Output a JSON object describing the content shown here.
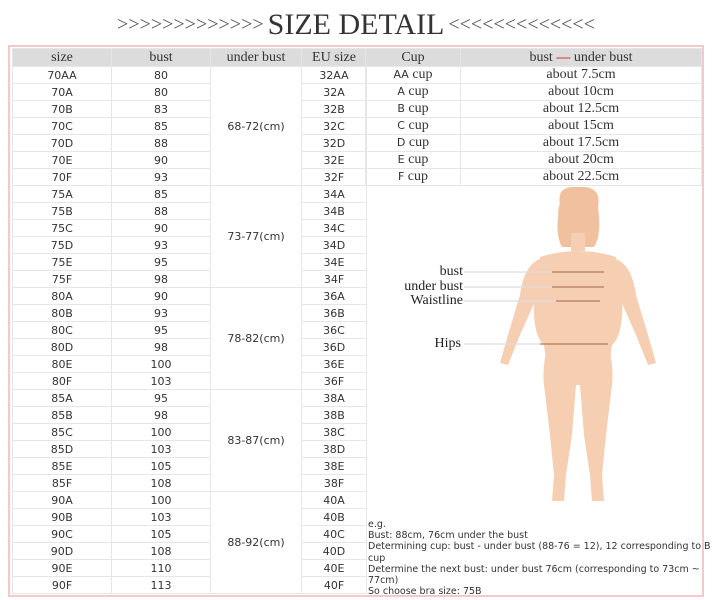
{
  "title": {
    "left_arrows": ">>>>>>>>>>>>>",
    "text": "SIZE DETAIL",
    "right_arrows": "<<<<<<<<<<<<<"
  },
  "size_table": {
    "headers": [
      "size",
      "bust",
      "under bust",
      "EU size"
    ],
    "groups": [
      {
        "under_bust": "68-72(cm)",
        "rows": [
          [
            "70AA",
            "80",
            "32AA"
          ],
          [
            "70A",
            "80",
            "32A"
          ],
          [
            "70B",
            "83",
            "32B"
          ],
          [
            "70C",
            "85",
            "32C"
          ],
          [
            "70D",
            "88",
            "32D"
          ],
          [
            "70E",
            "90",
            "32E"
          ],
          [
            "70F",
            "93",
            "32F"
          ]
        ]
      },
      {
        "under_bust": "73-77(cm)",
        "rows": [
          [
            "75A",
            "85",
            "34A"
          ],
          [
            "75B",
            "88",
            "34B"
          ],
          [
            "75C",
            "90",
            "34C"
          ],
          [
            "75D",
            "93",
            "34D"
          ],
          [
            "75E",
            "95",
            "34E"
          ],
          [
            "75F",
            "98",
            "34F"
          ]
        ]
      },
      {
        "under_bust": "78-82(cm)",
        "rows": [
          [
            "80A",
            "90",
            "36A"
          ],
          [
            "80B",
            "93",
            "36B"
          ],
          [
            "80C",
            "95",
            "36C"
          ],
          [
            "80D",
            "98",
            "36D"
          ],
          [
            "80E",
            "100",
            "36E"
          ],
          [
            "80F",
            "103",
            "36F"
          ]
        ]
      },
      {
        "under_bust": "83-87(cm)",
        "rows": [
          [
            "85A",
            "95",
            "38A"
          ],
          [
            "85B",
            "98",
            "38B"
          ],
          [
            "85C",
            "100",
            "38C"
          ],
          [
            "85D",
            "103",
            "38D"
          ],
          [
            "85E",
            "105",
            "38E"
          ],
          [
            "85F",
            "108",
            "38F"
          ]
        ]
      },
      {
        "under_bust": "88-92(cm)",
        "rows": [
          [
            "90A",
            "100",
            "40A"
          ],
          [
            "90B",
            "103",
            "40B"
          ],
          [
            "90C",
            "105",
            "40C"
          ],
          [
            "90D",
            "108",
            "40D"
          ],
          [
            "90E",
            "110",
            "40E"
          ],
          [
            "90F",
            "113",
            "40F"
          ]
        ]
      }
    ]
  },
  "cup_table": {
    "header_cup": "Cup",
    "header_diff_left": "bust",
    "header_diff_dash": "—",
    "header_diff_right": "under bust",
    "cup_word": "cup",
    "rows": [
      {
        "letter": "AA",
        "diff": "about 7.5cm"
      },
      {
        "letter": "A",
        "diff": "about 10cm"
      },
      {
        "letter": "B",
        "diff": "about 12.5cm"
      },
      {
        "letter": "C",
        "diff": "about 15cm"
      },
      {
        "letter": "D",
        "diff": "about 17.5cm"
      },
      {
        "letter": "E",
        "diff": "about 20cm"
      },
      {
        "letter": "F",
        "diff": "about 22.5cm"
      }
    ]
  },
  "figure": {
    "labels": {
      "bust": "bust",
      "under_bust": "under bust",
      "waist": "Waistline",
      "hips": "Hips"
    },
    "skin_color": "#f6cfb3",
    "line_color": "#b07a5a"
  },
  "example": [
    "e.g.",
    "Bust: 88cm, 76cm under the bust",
    "Determining cup: bust - under bust (88-76 = 12), 12 corresponding to B cup",
    "Determine the next bust: under bust 76cm (corresponding to 73cm ~ 77cm)",
    "So choose bra size: 75B"
  ]
}
